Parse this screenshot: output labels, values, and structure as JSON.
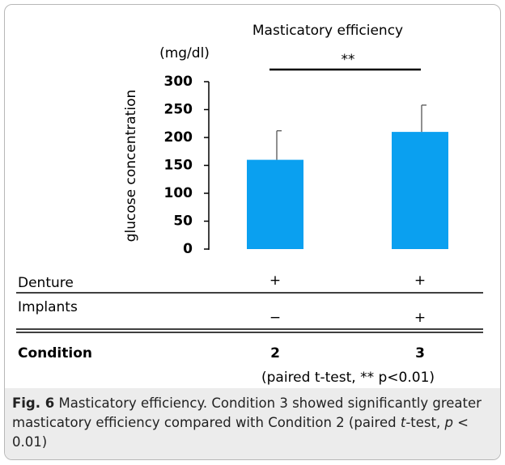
{
  "chart_data": {
    "type": "bar",
    "title": "Masticatory efficiency",
    "unit": "(mg/dl)",
    "y_label": "glucose concentration",
    "x_label": "Condition",
    "categories": [
      "2",
      "3"
    ],
    "values": [
      160,
      210
    ],
    "errors": [
      52,
      48
    ],
    "color": "#0aa0f0",
    "ylim": [
      0,
      300
    ],
    "yticks": [
      0,
      50,
      100,
      150,
      200,
      250,
      300
    ],
    "significance": "**",
    "note": "(paired t-test, ** p<0.01)"
  },
  "table": {
    "rows": [
      {
        "label": "Denture",
        "cells": [
          "+",
          "+"
        ]
      },
      {
        "label": "Implants",
        "cells": [
          "−",
          "+"
        ]
      }
    ]
  },
  "caption": {
    "label": "Fig. 6",
    "segments": [
      " Masticatory efficiency. Condition 3 showed significantly greater masticatory efficiency compared with Condition 2 (paired ",
      "t",
      "-test, ",
      "p",
      " < 0.01)"
    ]
  }
}
